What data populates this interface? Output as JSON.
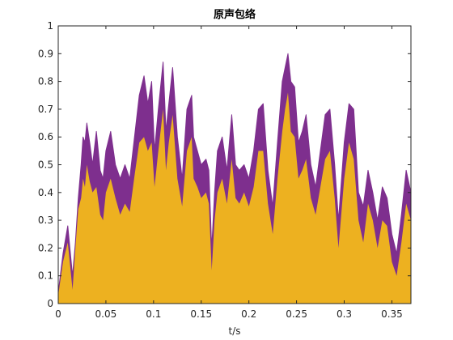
{
  "chart_data": {
    "type": "area",
    "title": "原声包络",
    "xlabel": "t/s",
    "ylabel": "",
    "xlim": [
      0,
      0.37
    ],
    "ylim": [
      0,
      1
    ],
    "grid": false,
    "box": true,
    "xticks": [
      0,
      0.05,
      0.1,
      0.15,
      0.2,
      0.25,
      0.3,
      0.35
    ],
    "xtick_labels": [
      "0",
      "0.05",
      "0.1",
      "0.15",
      "0.2",
      "0.25",
      "0.3",
      "0.35"
    ],
    "yticks": [
      0,
      0.1,
      0.2,
      0.3,
      0.4,
      0.5,
      0.6,
      0.7,
      0.8,
      0.9,
      1
    ],
    "ytick_labels": [
      "0",
      "0.1",
      "0.2",
      "0.3",
      "0.4",
      "0.5",
      "0.6",
      "0.7",
      "0.8",
      "0.9",
      "1"
    ],
    "series": [
      {
        "role": "envelope",
        "style": "line",
        "color": "#7E2F8E",
        "x": [
          0,
          0.005,
          0.01,
          0.015,
          0.018,
          0.021,
          0.024,
          0.026,
          0.028,
          0.03,
          0.033,
          0.036,
          0.04,
          0.044,
          0.047,
          0.05,
          0.055,
          0.06,
          0.065,
          0.07,
          0.075,
          0.08,
          0.085,
          0.09,
          0.094,
          0.098,
          0.101,
          0.105,
          0.11,
          0.113,
          0.116,
          0.12,
          0.125,
          0.13,
          0.135,
          0.14,
          0.142,
          0.146,
          0.15,
          0.155,
          0.158,
          0.161,
          0.164,
          0.167,
          0.172,
          0.177,
          0.182,
          0.186,
          0.19,
          0.195,
          0.2,
          0.205,
          0.21,
          0.215,
          0.22,
          0.225,
          0.23,
          0.235,
          0.238,
          0.241,
          0.244,
          0.248,
          0.252,
          0.256,
          0.26,
          0.265,
          0.27,
          0.275,
          0.28,
          0.285,
          0.29,
          0.294,
          0.3,
          0.305,
          0.31,
          0.315,
          0.32,
          0.325,
          0.33,
          0.335,
          0.34,
          0.345,
          0.35,
          0.355,
          0.36,
          0.365,
          0.37
        ],
        "y": [
          0.04,
          0.18,
          0.28,
          0.1,
          0.22,
          0.38,
          0.5,
          0.6,
          0.58,
          0.65,
          0.58,
          0.5,
          0.62,
          0.48,
          0.45,
          0.55,
          0.62,
          0.5,
          0.45,
          0.5,
          0.45,
          0.6,
          0.75,
          0.82,
          0.72,
          0.8,
          0.55,
          0.7,
          0.87,
          0.62,
          0.72,
          0.85,
          0.6,
          0.45,
          0.7,
          0.75,
          0.6,
          0.55,
          0.5,
          0.52,
          0.48,
          0.2,
          0.4,
          0.55,
          0.6,
          0.48,
          0.68,
          0.5,
          0.48,
          0.5,
          0.45,
          0.55,
          0.7,
          0.72,
          0.48,
          0.35,
          0.58,
          0.8,
          0.85,
          0.9,
          0.8,
          0.78,
          0.58,
          0.62,
          0.68,
          0.5,
          0.42,
          0.55,
          0.68,
          0.7,
          0.5,
          0.3,
          0.58,
          0.72,
          0.7,
          0.4,
          0.35,
          0.48,
          0.4,
          0.3,
          0.42,
          0.38,
          0.25,
          0.18,
          0.32,
          0.48,
          0.4
        ]
      },
      {
        "role": "signal",
        "style": "fill",
        "color": "#EDB120",
        "x": [
          0,
          0.005,
          0.01,
          0.015,
          0.018,
          0.021,
          0.024,
          0.026,
          0.028,
          0.03,
          0.033,
          0.036,
          0.04,
          0.044,
          0.047,
          0.05,
          0.055,
          0.06,
          0.065,
          0.07,
          0.075,
          0.08,
          0.085,
          0.09,
          0.094,
          0.098,
          0.101,
          0.105,
          0.11,
          0.113,
          0.116,
          0.12,
          0.125,
          0.13,
          0.135,
          0.14,
          0.142,
          0.146,
          0.15,
          0.155,
          0.158,
          0.161,
          0.164,
          0.167,
          0.172,
          0.177,
          0.182,
          0.186,
          0.19,
          0.195,
          0.2,
          0.205,
          0.21,
          0.215,
          0.22,
          0.225,
          0.23,
          0.235,
          0.238,
          0.241,
          0.244,
          0.248,
          0.252,
          0.256,
          0.26,
          0.265,
          0.27,
          0.275,
          0.28,
          0.285,
          0.29,
          0.294,
          0.3,
          0.305,
          0.31,
          0.315,
          0.32,
          0.325,
          0.33,
          0.335,
          0.34,
          0.345,
          0.35,
          0.355,
          0.36,
          0.365,
          0.37
        ],
        "y": [
          0.03,
          0.15,
          0.22,
          0.05,
          0.2,
          0.34,
          0.38,
          0.45,
          0.42,
          0.5,
          0.44,
          0.4,
          0.42,
          0.32,
          0.3,
          0.4,
          0.45,
          0.38,
          0.32,
          0.36,
          0.33,
          0.46,
          0.58,
          0.6,
          0.55,
          0.58,
          0.42,
          0.55,
          0.7,
          0.48,
          0.58,
          0.68,
          0.45,
          0.35,
          0.55,
          0.6,
          0.45,
          0.42,
          0.38,
          0.4,
          0.36,
          0.12,
          0.3,
          0.4,
          0.45,
          0.36,
          0.52,
          0.38,
          0.36,
          0.4,
          0.35,
          0.42,
          0.55,
          0.55,
          0.36,
          0.25,
          0.45,
          0.62,
          0.7,
          0.76,
          0.62,
          0.6,
          0.45,
          0.48,
          0.52,
          0.38,
          0.32,
          0.42,
          0.52,
          0.55,
          0.38,
          0.2,
          0.45,
          0.58,
          0.52,
          0.3,
          0.22,
          0.36,
          0.3,
          0.2,
          0.3,
          0.28,
          0.15,
          0.1,
          0.22,
          0.36,
          0.3
        ]
      }
    ]
  }
}
